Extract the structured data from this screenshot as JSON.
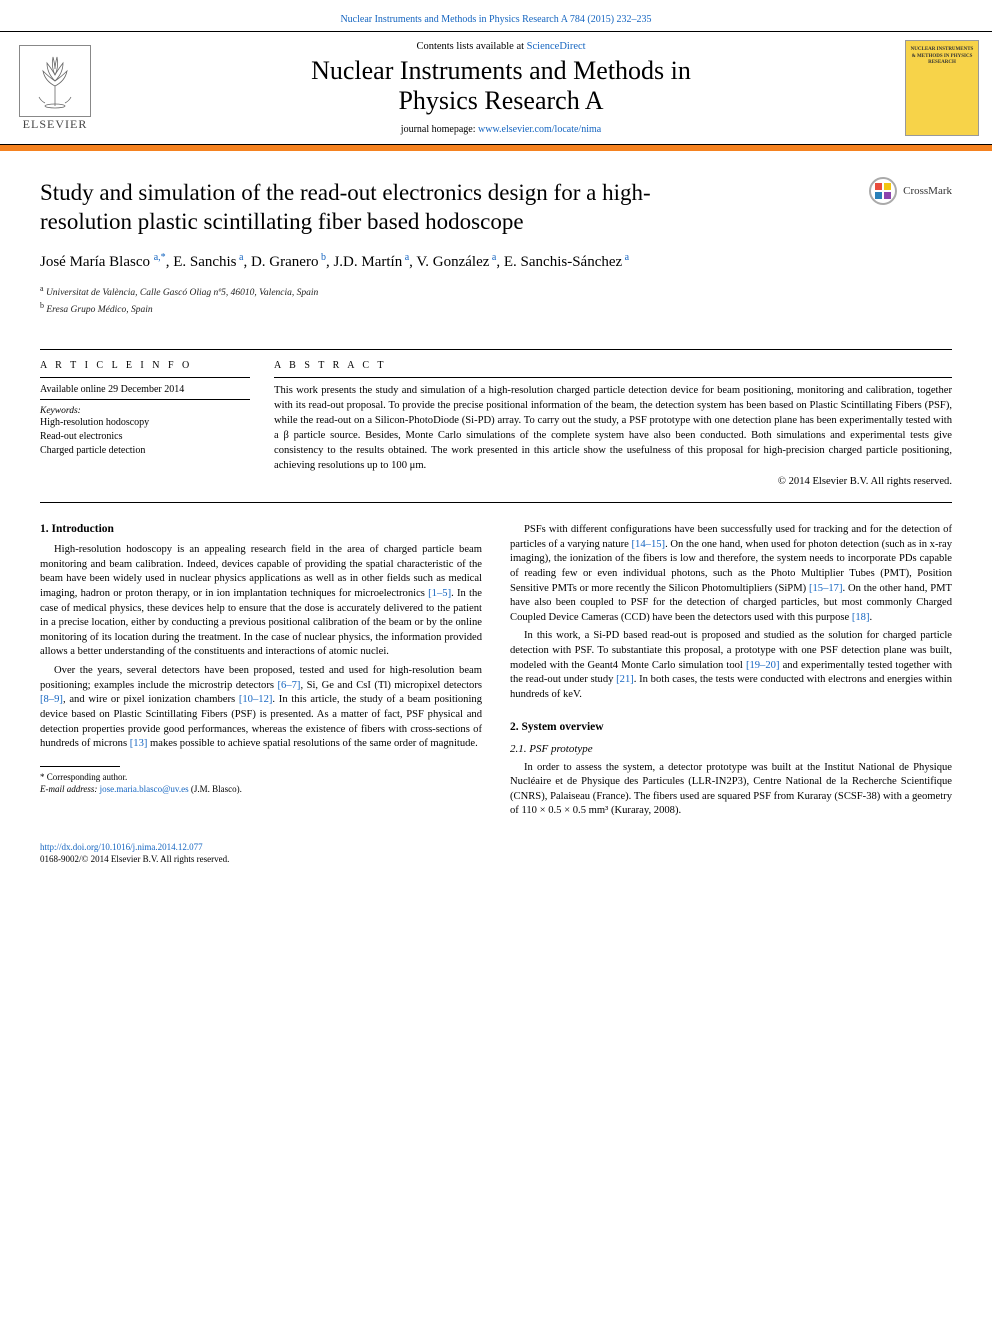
{
  "citation_line_prefix": "Nuclear Instruments and Methods in Physics Research A 784 (2015) 232–235",
  "masthead": {
    "contents_prefix": "Contents lists available at ",
    "contents_link": "ScienceDirect",
    "journal_name_line1": "Nuclear Instruments and Methods in",
    "journal_name_line2": "Physics Research A",
    "homepage_prefix": "journal homepage: ",
    "homepage_link": "www.elsevier.com/locate/nima",
    "elsevier_label": "ELSEVIER",
    "cover_text": "NUCLEAR INSTRUMENTS & METHODS IN PHYSICS RESEARCH"
  },
  "crossmark_label": "CrossMark",
  "title": "Study and simulation of the read-out electronics design for a high-resolution plastic scintillating fiber based hodoscope",
  "authors_html": "José María Blasco <span class='sup'>a,*</span>, E. Sanchis<span class='sup'> a</span>, D. Granero<span class='sup'> b</span>, J.D. Martín<span class='sup'> a</span>, V. González<span class='sup'> a</span>, E. Sanchis-Sánchez<span class='sup'> a</span>",
  "affiliations": [
    {
      "sup": "a",
      "text": "Universitat de València, Calle Gascó Oliag nº5, 46010, Valencia, Spain"
    },
    {
      "sup": "b",
      "text": "Eresa Grupo Médico, Spain"
    }
  ],
  "info": {
    "label": "A R T I C L E  I N F O",
    "available": "Available online 29 December 2014",
    "kw_label": "Keywords:",
    "keywords": [
      "High-resolution hodoscopy",
      "Read-out electronics",
      "Charged particle detection"
    ]
  },
  "abstract": {
    "label": "A B S T R A C T",
    "text": "This work presents the study and simulation of a high-resolution charged particle detection device for beam positioning, monitoring and calibration, together with its read-out proposal. To provide the precise positional information of the beam, the detection system has been based on Plastic Scintillating Fibers (PSF), while the read-out on a Silicon-PhotoDiode (Si-PD) array. To carry out the study, a PSF prototype with one detection plane has been experimentally tested with a β particle source. Besides, Monte Carlo simulations of the complete system have also been conducted. Both simulations and experimental tests give consistency to the results obtained. The work presented in this article show the usefulness of this proposal for high-precision charged particle positioning, achieving resolutions up to 100 μm.",
    "copyright": "© 2014 Elsevier B.V. All rights reserved."
  },
  "section1": {
    "head": "1.  Introduction",
    "p1_pre": "High-resolution hodoscopy is an appealing research field in the area of charged particle beam monitoring and beam calibration. Indeed, devices capable of providing the spatial characteristic of the beam have been widely used in nuclear physics applications as well as in other fields such as medical imaging, hadron or proton therapy, or in ion implantation techniques for microelectronics ",
    "p1_ref": "[1–5]",
    "p1_post": ". In the case of medical physics, these devices help to ensure that the dose is accurately delivered to the patient in a precise location, either by conducting a previous positional calibration of the beam or by the online monitoring of its location during the treatment. In the case of nuclear physics, the information provided allows a better understanding of the constituents and interactions of atomic nuclei.",
    "p2_a": "Over the years, several detectors have been proposed, tested and used for high-resolution beam positioning; examples include the microstrip detectors ",
    "p2_r1": "[6–7]",
    "p2_b": ", Si, Ge and CsI (Tl) micropixel detectors ",
    "p2_r2": "[8–9]",
    "p2_c": ", and wire or pixel ionization chambers ",
    "p2_r3": "[10–12]",
    "p2_d": ". In this article, the study of a beam positioning device based on Plastic Scintillating Fibers (PSF) is presented. As a matter of fact, PSF physical and detection properties provide good performances, whereas the existence of fibers with cross-sections of hundreds of microns ",
    "p2_r4": "[13]",
    "p2_e": " makes possible to achieve spatial resolutions of the same order of magnitude."
  },
  "col2": {
    "p1_a": "PSFs with different configurations have been successfully used for tracking and for the detection of particles of a varying nature ",
    "p1_r1": "[14–15]",
    "p1_b": ". On the one hand, when used for photon detection (such as in x-ray imaging), the ionization of the fibers is low and therefore, the system needs to incorporate PDs capable of reading few or even individual photons, such as the Photo Multiplier Tubes (PMT), Position Sensitive PMTs or more recently the Silicon Photomultipliers (SiPM) ",
    "p1_r2": "[15–17]",
    "p1_c": ". On the other hand, PMT have also been coupled to PSF for the detection of charged particles, but most commonly Charged Coupled Device Cameras (CCD) have been the detectors used with this purpose ",
    "p1_r3": "[18]",
    "p1_d": ".",
    "p2_a": "In this work, a Si-PD based read-out is proposed and studied as the solution for charged particle detection with PSF. To substantiate this proposal, a prototype with one PSF detection plane was built, modeled with the Geant4 Monte Carlo simulation tool ",
    "p2_r1": "[19–20]",
    "p2_b": " and experimentally tested together with the read-out under study ",
    "p2_r2": "[21]",
    "p2_c": ". In both cases, the tests were conducted with electrons and energies within hundreds of keV."
  },
  "section2": {
    "head": "2.  System overview",
    "sub": "2.1.  PSF prototype",
    "p1": "In order to assess the system, a detector prototype was built at the Institut National de Physique Nucléaire et de Physique des Particules (LLR-IN2P3), Centre National de la Recherche Scientifique (CNRS), Palaiseau (France). The fibers used are squared PSF from Kuraray (SCSF-38) with a geometry of 110 × 0.5 × 0.5 mm³ (Kuraray, 2008)."
  },
  "footnote": {
    "corr": "* Corresponding author.",
    "email_label": "E-mail address: ",
    "email": "jose.maria.blasco@uv.es",
    "email_tail": " (J.M. Blasco)."
  },
  "footer": {
    "doi": "http://dx.doi.org/10.1016/j.nima.2014.12.077",
    "issn_line": "0168-9002/© 2014 Elsevier B.V. All rights reserved."
  },
  "colors": {
    "link": "#1565c0",
    "orange": "#f58220",
    "cover_bg": "#f7d349"
  }
}
